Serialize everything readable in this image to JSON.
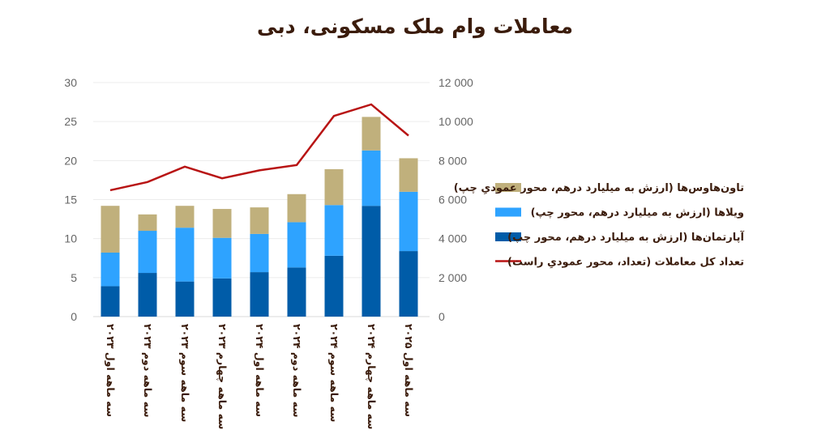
{
  "chart_data": {
    "type": "bar",
    "stacked": true,
    "title": "معاملات وام ملک مسکونی، دبی",
    "categories": [
      "سه ماهه اول ۲۰۲۳",
      "سه ماهه دوم ۲۰۲۳",
      "سه ماهه سوم ۲۰۲۳",
      "سه ماهه چهارم ۲۰۲۳",
      "سه ماهه اول ۲۰۲۴",
      "سه ماهه دوم ۲۰۲۴",
      "سه ماهه سوم ۲۰۲۴",
      "سه ماهه چهارم ۲۰۲۴",
      "سه ماهه اول ۲۰۲۵"
    ],
    "series": [
      {
        "name": "آپارتمان‌ها (ارزش به میلیارد درهم، محور چپ)",
        "type": "bar",
        "axis": "left",
        "color": "#005ca8",
        "values": [
          3.9,
          5.6,
          4.5,
          4.9,
          5.7,
          6.3,
          7.8,
          14.2,
          8.4
        ]
      },
      {
        "name": "ویلاها (ارزش به میلیارد درهم، محور چپ)",
        "type": "bar",
        "axis": "left",
        "color": "#2ea3ff",
        "values": [
          4.3,
          5.4,
          6.9,
          5.2,
          4.9,
          5.8,
          6.5,
          7.1,
          7.6
        ]
      },
      {
        "name": "تاون‌هاوس‌ها (ارزش به میلیارد درهم، محور عمودیِ چپ)",
        "type": "bar",
        "axis": "left",
        "color": "#c0b07c",
        "values": [
          6.0,
          2.1,
          2.8,
          3.7,
          3.4,
          3.6,
          4.6,
          4.3,
          4.3
        ]
      },
      {
        "name": "تعداد کل معاملات (تعداد، محور عمودیِ راست)",
        "type": "line",
        "axis": "right",
        "color": "#b81414",
        "values": [
          6480,
          6900,
          7690,
          7090,
          7500,
          7770,
          10290,
          10880,
          9280
        ]
      }
    ],
    "legend_order": [
      2,
      1,
      0,
      3
    ],
    "ylim_left": [
      0,
      30
    ],
    "yticks_left": [
      "0",
      "5",
      "10",
      "15",
      "20",
      "25",
      "30"
    ],
    "ylim_right": [
      0,
      12000
    ],
    "yticks_right": [
      "0",
      "2 000",
      "4 000",
      "6 000",
      "8 000",
      "10 000",
      "12 000"
    ],
    "grid": true,
    "legend_position": "right"
  }
}
